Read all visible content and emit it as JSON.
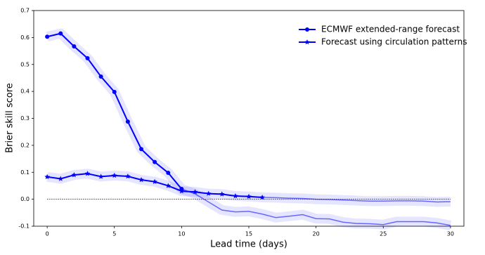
{
  "chart_data": {
    "type": "line",
    "xlabel": "Lead time (days)",
    "ylabel": "Brier skill score",
    "x": [
      0,
      1,
      2,
      3,
      4,
      5,
      6,
      7,
      8,
      9,
      10,
      11,
      12,
      13,
      14,
      15,
      16,
      17,
      18,
      19,
      20,
      21,
      22,
      23,
      24,
      25,
      26,
      27,
      28,
      29,
      30
    ],
    "series": [
      {
        "name": "ECMWF extended-range forecast",
        "color": "#0000ff",
        "marker": "circle",
        "values": [
          0.603,
          0.615,
          0.567,
          0.523,
          0.455,
          0.398,
          0.288,
          0.186,
          0.138,
          0.098,
          0.038,
          0.02,
          -0.01,
          -0.04,
          -0.047,
          -0.045,
          -0.055,
          -0.068,
          -0.063,
          -0.057,
          -0.072,
          -0.073,
          -0.085,
          -0.09,
          -0.091,
          -0.094,
          -0.083,
          -0.083,
          -0.083,
          -0.088,
          -0.097
        ]
      },
      {
        "name": "Forecast using circulation patterns",
        "color": "#0000ff",
        "marker": "star",
        "values": [
          0.083,
          0.076,
          0.09,
          0.095,
          0.084,
          0.088,
          0.085,
          0.072,
          0.065,
          0.05,
          0.03,
          0.027,
          0.021,
          0.019,
          0.012,
          0.01,
          0.007,
          0.006,
          0.004,
          0.003,
          0.0,
          -0.001,
          -0.003,
          -0.005,
          -0.007,
          -0.007,
          -0.006,
          -0.006,
          -0.007,
          -0.01,
          -0.009
        ]
      }
    ],
    "xlim": [
      -1,
      31
    ],
    "xticks": [
      0,
      5,
      10,
      15,
      20,
      25,
      30
    ],
    "ylim": [
      -0.1,
      0.7
    ],
    "yticks": [
      -0.1,
      {
        "value": 0,
        "label": "0.0"
      },
      0.1,
      0.2,
      0.3,
      0.4,
      0.5,
      0.6,
      0.7
    ],
    "legend": "upper right"
  }
}
